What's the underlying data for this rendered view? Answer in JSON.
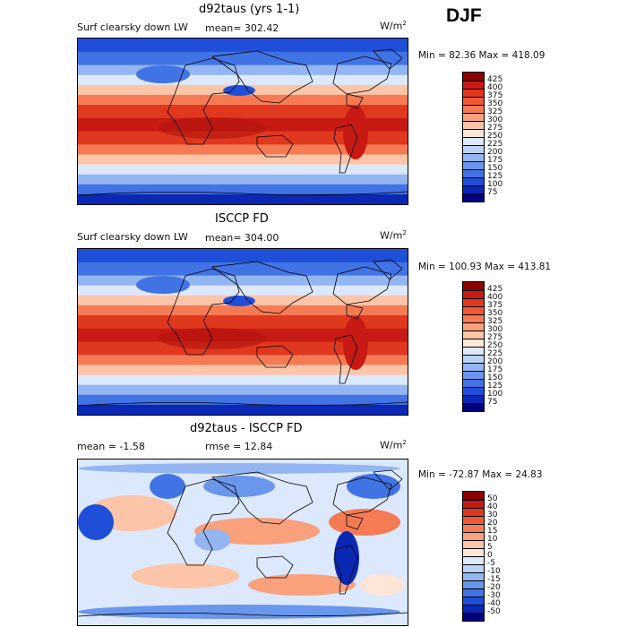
{
  "season": "DJF",
  "panels": [
    {
      "title": "d92taus (yrs 1-1)",
      "left_label": "Surf clearsky down LW",
      "stat_label": "mean= 302.42",
      "units": "W/m",
      "units_sup": "2",
      "minmax": "Min =  82.36 Max = 418.09",
      "cbar_labels": [
        "425",
        "400",
        "375",
        "350",
        "325",
        "300",
        "275",
        "250",
        "225",
        "200",
        "175",
        "150",
        "125",
        "100",
        "75"
      ],
      "cbar_colors": [
        "#8b0000",
        "#c81a14",
        "#e0381e",
        "#ef5a32",
        "#f57b55",
        "#f9a07c",
        "#fcc5a8",
        "#fde6d8",
        "#dce8fb",
        "#bcd3f8",
        "#93b6f2",
        "#6a96ec",
        "#4273e4",
        "#1f4fd8",
        "#0a28b4",
        "#00007a"
      ]
    },
    {
      "title": "ISCCP FD",
      "left_label": "Surf clearsky down LW",
      "stat_label": "mean= 304.00",
      "units": "W/m",
      "units_sup": "2",
      "minmax": "Min = 100.93 Max = 413.81",
      "cbar_labels": [
        "425",
        "400",
        "375",
        "350",
        "325",
        "300",
        "275",
        "250",
        "225",
        "200",
        "175",
        "150",
        "125",
        "100",
        "75"
      ],
      "cbar_colors": [
        "#8b0000",
        "#c81a14",
        "#e0381e",
        "#ef5a32",
        "#f57b55",
        "#f9a07c",
        "#fcc5a8",
        "#fde6d8",
        "#dce8fb",
        "#bcd3f8",
        "#93b6f2",
        "#6a96ec",
        "#4273e4",
        "#1f4fd8",
        "#0a28b4",
        "#00007a"
      ]
    },
    {
      "title": "d92taus - ISCCP FD",
      "left_label": "mean =   -1.58",
      "stat_label": "rmse =  12.84",
      "units": "W/m",
      "units_sup": "2",
      "minmax": "Min = -72.87 Max =  24.83",
      "cbar_labels": [
        "50",
        "40",
        "30",
        "20",
        "15",
        "10",
        "5",
        "0",
        "-5",
        "-10",
        "-15",
        "-20",
        "-30",
        "-40",
        "-50"
      ],
      "cbar_colors": [
        "#8b0000",
        "#c81a14",
        "#e0381e",
        "#ef5a32",
        "#f57b55",
        "#f9a07c",
        "#fcc5a8",
        "#fde6d8",
        "#dce8fb",
        "#bcd3f8",
        "#93b6f2",
        "#6a96ec",
        "#4273e4",
        "#1f4fd8",
        "#0a28b4",
        "#00007a"
      ]
    }
  ]
}
